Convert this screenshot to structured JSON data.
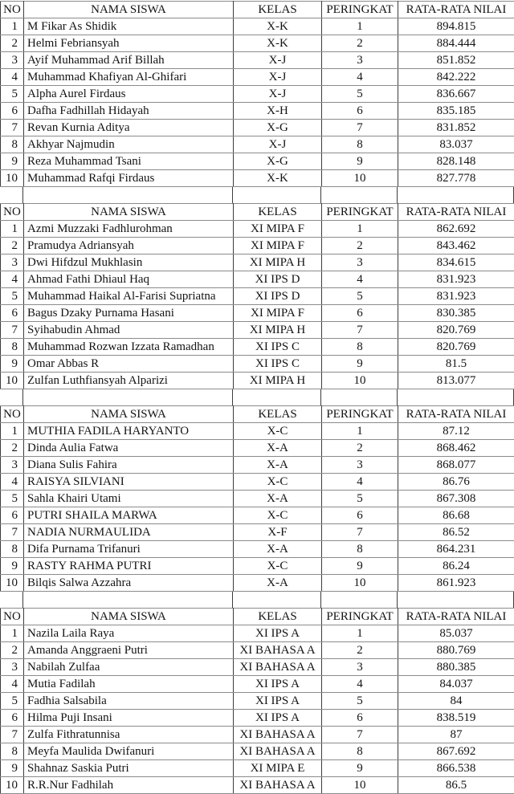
{
  "headers": [
    "NO",
    "NAMA SISWA",
    "KELAS",
    "PERINGKAT",
    "RATA-RATA NILAI"
  ],
  "colors": {
    "background": "#ffffff",
    "text": "#141414",
    "border_horizontal": "#8b8b8b",
    "border_vertical": "#3c3c3c"
  },
  "tables": [
    {
      "rows": [
        {
          "no": "1",
          "nama": "M Fikar As Shidik",
          "kelas": "X-K",
          "peringkat": "1",
          "nilai": "894.815"
        },
        {
          "no": "2",
          "nama": "Helmi Febriansyah",
          "kelas": "X-K",
          "peringkat": "2",
          "nilai": "884.444"
        },
        {
          "no": "3",
          "nama": "Ayif Muhammad Arif Billah",
          "kelas": "X-J",
          "peringkat": "3",
          "nilai": "851.852"
        },
        {
          "no": "4",
          "nama": "Muhammad Khafiyan Al-Ghifari",
          "kelas": "X-J",
          "peringkat": "4",
          "nilai": "842.222"
        },
        {
          "no": "5",
          "nama": "Alpha Aurel Firdaus",
          "kelas": "X-J",
          "peringkat": "5",
          "nilai": "836.667"
        },
        {
          "no": "6",
          "nama": "Dafha Fadhillah Hidayah",
          "kelas": "X-H",
          "peringkat": "6",
          "nilai": "835.185"
        },
        {
          "no": "7",
          "nama": "Revan Kurnia Aditya",
          "kelas": "X-G",
          "peringkat": "7",
          "nilai": "831.852"
        },
        {
          "no": "8",
          "nama": "Akhyar Najmudin",
          "kelas": "X-J",
          "peringkat": "8",
          "nilai": "83.037"
        },
        {
          "no": "9",
          "nama": "Reza Muhammad Tsani",
          "kelas": "X-G",
          "peringkat": "9",
          "nilai": "828.148"
        },
        {
          "no": "10",
          "nama": "Muhammad Rafqi Firdaus",
          "kelas": "X-K",
          "peringkat": "10",
          "nilai": "827.778"
        }
      ]
    },
    {
      "rows": [
        {
          "no": "1",
          "nama": "Azmi Muzzaki Fadhlurohman",
          "kelas": "XI MIPA F",
          "peringkat": "1",
          "nilai": "862.692"
        },
        {
          "no": "2",
          "nama": "Pramudya Adriansyah",
          "kelas": "XI MIPA F",
          "peringkat": "2",
          "nilai": "843.462"
        },
        {
          "no": "3",
          "nama": "Dwi Hifdzul Mukhlasin",
          "kelas": "XI MIPA H",
          "peringkat": "3",
          "nilai": "834.615"
        },
        {
          "no": "4",
          "nama": "Ahmad Fathi Dhiaul Haq",
          "kelas": "XI IPS D",
          "peringkat": "4",
          "nilai": "831.923"
        },
        {
          "no": "5",
          "nama": "Muhammad Haikal Al-Farisi Supriatna",
          "kelas": "XI IPS D",
          "peringkat": "5",
          "nilai": "831.923"
        },
        {
          "no": "6",
          "nama": "Bagus Dzaky Purnama Hasani",
          "kelas": "XI MIPA F",
          "peringkat": "6",
          "nilai": "830.385"
        },
        {
          "no": "7",
          "nama": "Syihabudin Ahmad",
          "kelas": "XI MIPA H",
          "peringkat": "7",
          "nilai": "820.769"
        },
        {
          "no": "8",
          "nama": "Muhammad Rozwan Izzata Ramadhan",
          "kelas": "XI IPS C",
          "peringkat": "8",
          "nilai": "820.769"
        },
        {
          "no": "9",
          "nama": "Omar Abbas R",
          "kelas": "XI IPS C",
          "peringkat": "9",
          "nilai": "81.5"
        },
        {
          "no": "10",
          "nama": "Zulfan Luthfiansyah Alparizi",
          "kelas": "XI MIPA H",
          "peringkat": "10",
          "nilai": "813.077"
        }
      ]
    },
    {
      "rows": [
        {
          "no": "1",
          "nama": "MUTHIA FADILA HARYANTO",
          "kelas": "X-C",
          "peringkat": "1",
          "nilai": "87.12"
        },
        {
          "no": "2",
          "nama": "Dinda Aulia Fatwa",
          "kelas": "X-A",
          "peringkat": "2",
          "nilai": "868.462"
        },
        {
          "no": "3",
          "nama": "Diana Sulis Fahira",
          "kelas": "X-A",
          "peringkat": "3",
          "nilai": "868.077"
        },
        {
          "no": "4",
          "nama": "RAISYA SILVIANI",
          "kelas": "X-C",
          "peringkat": "4",
          "nilai": "86.76"
        },
        {
          "no": "5",
          "nama": "Sahla Khairi Utami",
          "kelas": "X-A",
          "peringkat": "5",
          "nilai": "867.308"
        },
        {
          "no": "6",
          "nama": "PUTRI SHAILA MARWA",
          "kelas": "X-C",
          "peringkat": "6",
          "nilai": "86.68"
        },
        {
          "no": "7",
          "nama": "NADIA NURMAULIDA",
          "kelas": "X-F",
          "peringkat": "7",
          "nilai": "86.52"
        },
        {
          "no": "8",
          "nama": "Difa Purnama Trifanuri",
          "kelas": "X-A",
          "peringkat": "8",
          "nilai": "864.231"
        },
        {
          "no": "9",
          "nama": "RASTY RAHMA PUTRI",
          "kelas": "X-C",
          "peringkat": "9",
          "nilai": "86.24"
        },
        {
          "no": "10",
          "nama": "Bilqis Salwa Azzahra",
          "kelas": "X-A",
          "peringkat": "10",
          "nilai": "861.923"
        }
      ]
    },
    {
      "rows": [
        {
          "no": "1",
          "nama": "Nazila Laila Raya",
          "kelas": "XI IPS A",
          "peringkat": "1",
          "nilai": "85.037"
        },
        {
          "no": "2",
          "nama": "Amanda Anggraeni Putri",
          "kelas": "XI BAHASA A",
          "peringkat": "2",
          "nilai": "880.769"
        },
        {
          "no": "3",
          "nama": "Nabilah Zulfaa",
          "kelas": "XI BAHASA A",
          "peringkat": "3",
          "nilai": "880.385"
        },
        {
          "no": "4",
          "nama": "Mutia Fadilah",
          "kelas": "XI IPS A",
          "peringkat": "4",
          "nilai": "84.037"
        },
        {
          "no": "5",
          "nama": "Fadhia Salsabila",
          "kelas": "XI IPS A",
          "peringkat": "5",
          "nilai": "84"
        },
        {
          "no": "6",
          "nama": "Hilma Puji Insani",
          "kelas": "XI IPS A",
          "peringkat": "6",
          "nilai": "838.519"
        },
        {
          "no": "7",
          "nama": "Zulfa Fithratunnisa",
          "kelas": "XI BAHASA A",
          "peringkat": "7",
          "nilai": "87"
        },
        {
          "no": "8",
          "nama": "Meyfa Maulida Dwifanuri",
          "kelas": "XI BAHASA A",
          "peringkat": "8",
          "nilai": "867.692"
        },
        {
          "no": "9",
          "nama": "Shahnaz Saskia Putri",
          "kelas": "XI MIPA E",
          "peringkat": "9",
          "nilai": "866.538"
        },
        {
          "no": "10",
          "nama": "R.R.Nur Fadhilah",
          "kelas": "XI BAHASA A",
          "peringkat": "10",
          "nilai": "86.5"
        }
      ]
    }
  ]
}
